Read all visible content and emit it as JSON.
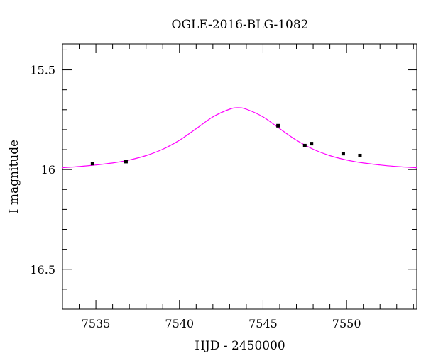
{
  "chart_data": {
    "type": "scatter",
    "title": "OGLE-2016-BLG-1082",
    "xlabel": "HJD - 2450000",
    "ylabel": "I magnitude",
    "xlim": [
      7533,
      7554.2
    ],
    "ylim": [
      16.7,
      15.37
    ],
    "y_inverted": true,
    "x_ticks": [
      7535,
      7540,
      7545,
      7550
    ],
    "x_tick_labels": [
      "7535",
      "7540",
      "7545",
      "7550"
    ],
    "y_ticks": [
      15.5,
      16,
      16.5
    ],
    "y_tick_labels": [
      "15.5",
      "16",
      "16.5"
    ],
    "grid": false,
    "series": [
      {
        "kind": "points",
        "color": "#000000",
        "x": [
          7534.8,
          7536.8,
          7545.9,
          7547.5,
          7547.9,
          7549.8,
          7550.8
        ],
        "y": [
          15.97,
          15.96,
          15.78,
          15.88,
          15.87,
          15.92,
          15.93
        ]
      },
      {
        "kind": "model-curve",
        "color": "#ff00ff",
        "x": [
          7533,
          7534,
          7535,
          7536,
          7537,
          7538,
          7539,
          7540,
          7541,
          7542,
          7543,
          7543.5,
          7544,
          7545,
          7546,
          7547,
          7548,
          7549,
          7550,
          7551,
          7552,
          7553,
          7554.2
        ],
        "y": [
          15.991,
          15.985,
          15.977,
          15.967,
          15.952,
          15.93,
          15.898,
          15.853,
          15.795,
          15.736,
          15.697,
          15.69,
          15.697,
          15.736,
          15.795,
          15.853,
          15.898,
          15.93,
          15.952,
          15.967,
          15.977,
          15.985,
          15.991
        ]
      }
    ]
  }
}
